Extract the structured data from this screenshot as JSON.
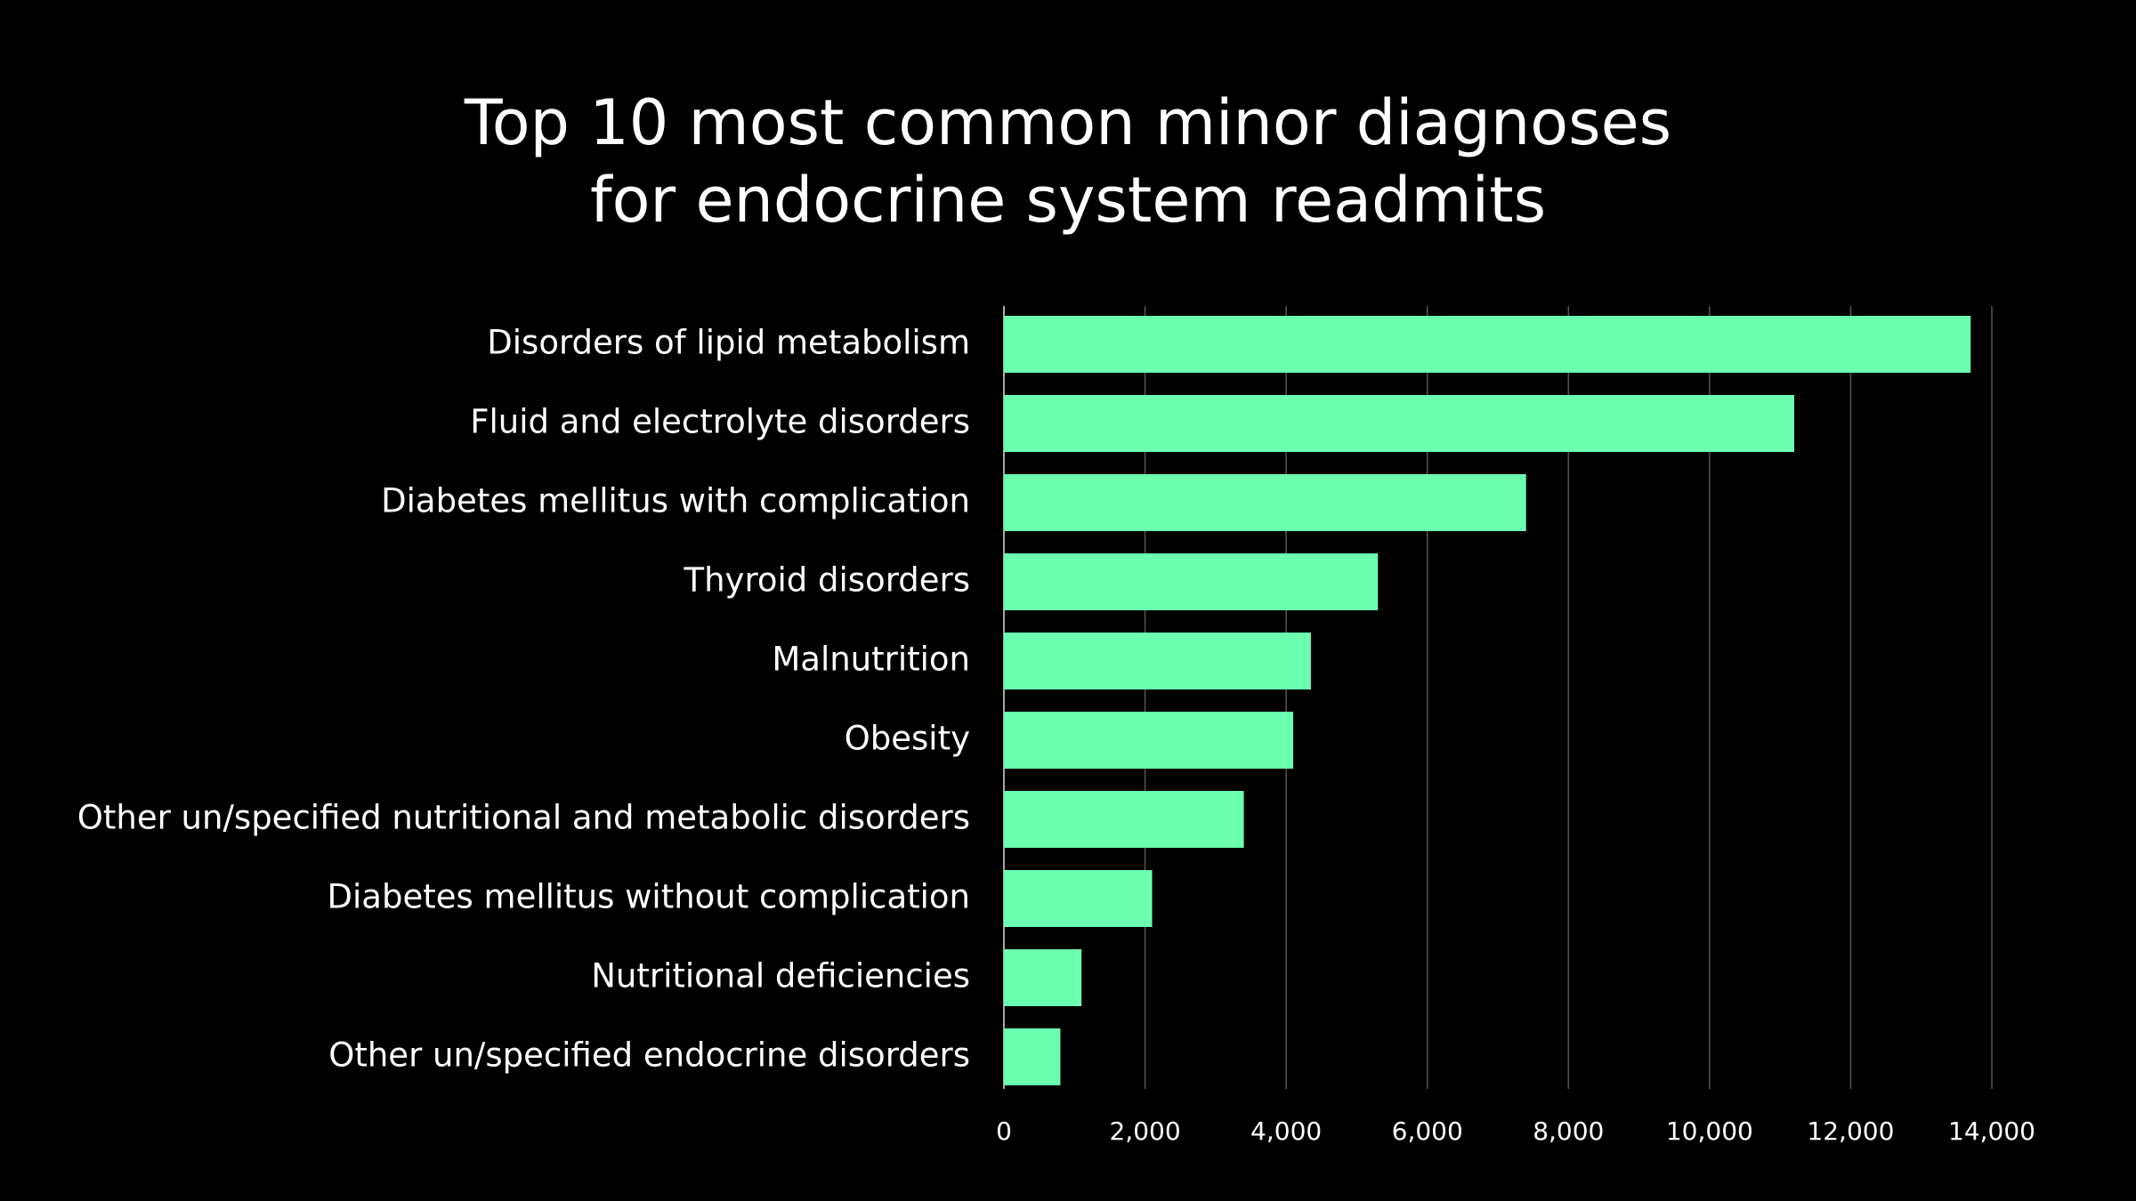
{
  "chart_data": {
    "type": "barh",
    "title": [
      "Top 10 most common minor diagnoses",
      "for endocrine system readmits"
    ],
    "categories": [
      "Disorders of lipid metabolism",
      "Fluid and electrolyte disorders",
      "Diabetes mellitus with complication",
      "Thyroid disorders",
      "Malnutrition",
      "Obesity",
      "Other un/specified nutritional and metabolic disorders",
      "Diabetes mellitus without complication",
      "Nutritional deficiencies",
      "Other un/specified endocrine disorders"
    ],
    "values": [
      13700,
      11200,
      7400,
      5300,
      4350,
      4100,
      3400,
      2100,
      1100,
      800
    ],
    "color": "#6bffb0",
    "xlim": [
      0,
      14000
    ],
    "xticks": [
      0,
      {
        "value": 2000,
        "label": "2,000"
      },
      {
        "value": 4000,
        "label": "4,000"
      },
      {
        "value": 6000,
        "label": "6,000"
      },
      {
        "value": 8000,
        "label": "8,000"
      },
      {
        "value": 10000,
        "label": "10,000"
      },
      {
        "value": 12000,
        "label": "12,000"
      },
      {
        "value": 14000,
        "label": "14,000"
      }
    ],
    "grid": true
  }
}
